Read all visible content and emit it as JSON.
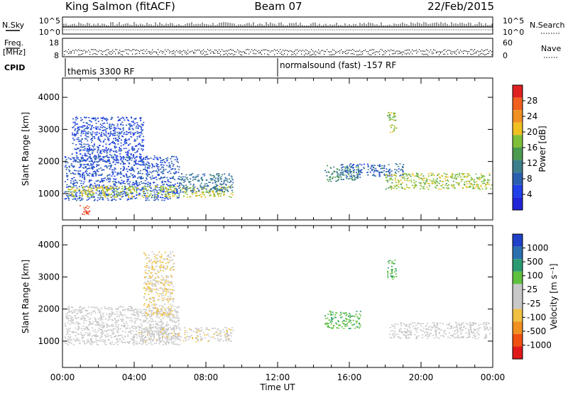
{
  "header": {
    "station": "King Salmon (fitACF)",
    "beam": "Beam 07",
    "date": "22/Feb/2015"
  },
  "strips": {
    "nsky_label": "N.Sky",
    "nsearch_label": "N.Search",
    "noise_ticks_left": [
      "10^5",
      "10^0"
    ],
    "noise_ticks_right": [
      "10^5",
      "10^0"
    ],
    "freq_label": "Freq.",
    "freq_unit": "[MHz]",
    "freq_ticks": [
      "18",
      "8"
    ],
    "nave_label": "Nave",
    "nave_ticks": [
      "60",
      "0"
    ],
    "cpid_label": "CPID",
    "cpid_segments": [
      {
        "label": "themis 3300 RF",
        "start_hour": 0,
        "end_hour": 12
      },
      {
        "label": "normalsound (fast) -157 RF",
        "start_hour": 12,
        "end_hour": 24
      }
    ]
  },
  "x_axis": {
    "label": "Time UT",
    "range_hours": [
      0,
      24
    ],
    "tick_labels": [
      "00:00",
      "04:00",
      "08:00",
      "12:00",
      "16:00",
      "20:00",
      "00:00"
    ]
  },
  "panels": {
    "power": {
      "ylabel": "Slant Range [km]",
      "yticks": [
        "1000",
        "2000",
        "3000",
        "4000"
      ],
      "colorbar_label": "Power [dB]",
      "colorbar_ticks": [
        "28",
        "24",
        "20",
        "16",
        "12",
        "8",
        "4"
      ]
    },
    "velocity": {
      "ylabel": "Slant Range [km]",
      "yticks": [
        "1000",
        "2000",
        "3000",
        "4000"
      ],
      "colorbar_label": "Velocity [m s⁻¹]",
      "colorbar_ticks": [
        "1000",
        "500",
        "100",
        "25",
        "-25",
        "-100",
        "-500",
        "-1000"
      ]
    }
  },
  "chart_data": {
    "type": "heatmap",
    "title": "King Salmon (fitACF)",
    "x_range_hours": [
      0,
      24
    ],
    "y_range_km": [
      180,
      4600
    ],
    "power_colorscale_db": [
      0,
      32
    ],
    "velocity_colorscale_ms": [
      -1200,
      1200
    ],
    "power_regions": [
      {
        "t0": 0.1,
        "t1": 6.5,
        "r0": 800,
        "r1": 2200,
        "power": 7
      },
      {
        "t0": 0.5,
        "t1": 4.5,
        "r0": 2000,
        "r1": 3400,
        "power": 6
      },
      {
        "t0": 0.1,
        "t1": 9.5,
        "r0": 900,
        "r1": 1250,
        "power": 19
      },
      {
        "t0": 6.5,
        "t1": 9.5,
        "r0": 1050,
        "r1": 1650,
        "power": 10
      },
      {
        "t0": 14.6,
        "t1": 16.6,
        "r0": 1400,
        "r1": 1900,
        "power": 12
      },
      {
        "t0": 15.5,
        "t1": 19.0,
        "r0": 1550,
        "r1": 1950,
        "power": 8
      },
      {
        "t0": 18.0,
        "t1": 23.9,
        "r0": 1150,
        "r1": 1650,
        "power": 18
      },
      {
        "t0": 18.1,
        "t1": 18.6,
        "r0": 2900,
        "r1": 3550,
        "power": 18
      },
      {
        "t0": 0.9,
        "t1": 1.5,
        "r0": 350,
        "r1": 650,
        "power": 28
      }
    ],
    "velocity_regions": [
      {
        "t0": 0.1,
        "t1": 6.5,
        "r0": 900,
        "r1": 2100,
        "velocity": 0
      },
      {
        "t0": 3.8,
        "t1": 9.5,
        "r0": 1000,
        "r1": 1450,
        "velocity": -150
      },
      {
        "t0": 4.5,
        "t1": 6.2,
        "r0": 1800,
        "r1": 3800,
        "velocity": -250
      },
      {
        "t0": 14.6,
        "t1": 16.6,
        "r0": 1400,
        "r1": 1950,
        "velocity": 400
      },
      {
        "t0": 18.2,
        "t1": 23.9,
        "r0": 1100,
        "r1": 1600,
        "velocity": 0
      },
      {
        "t0": 18.1,
        "t1": 18.6,
        "r0": 2900,
        "r1": 3550,
        "velocity": 450
      }
    ]
  }
}
